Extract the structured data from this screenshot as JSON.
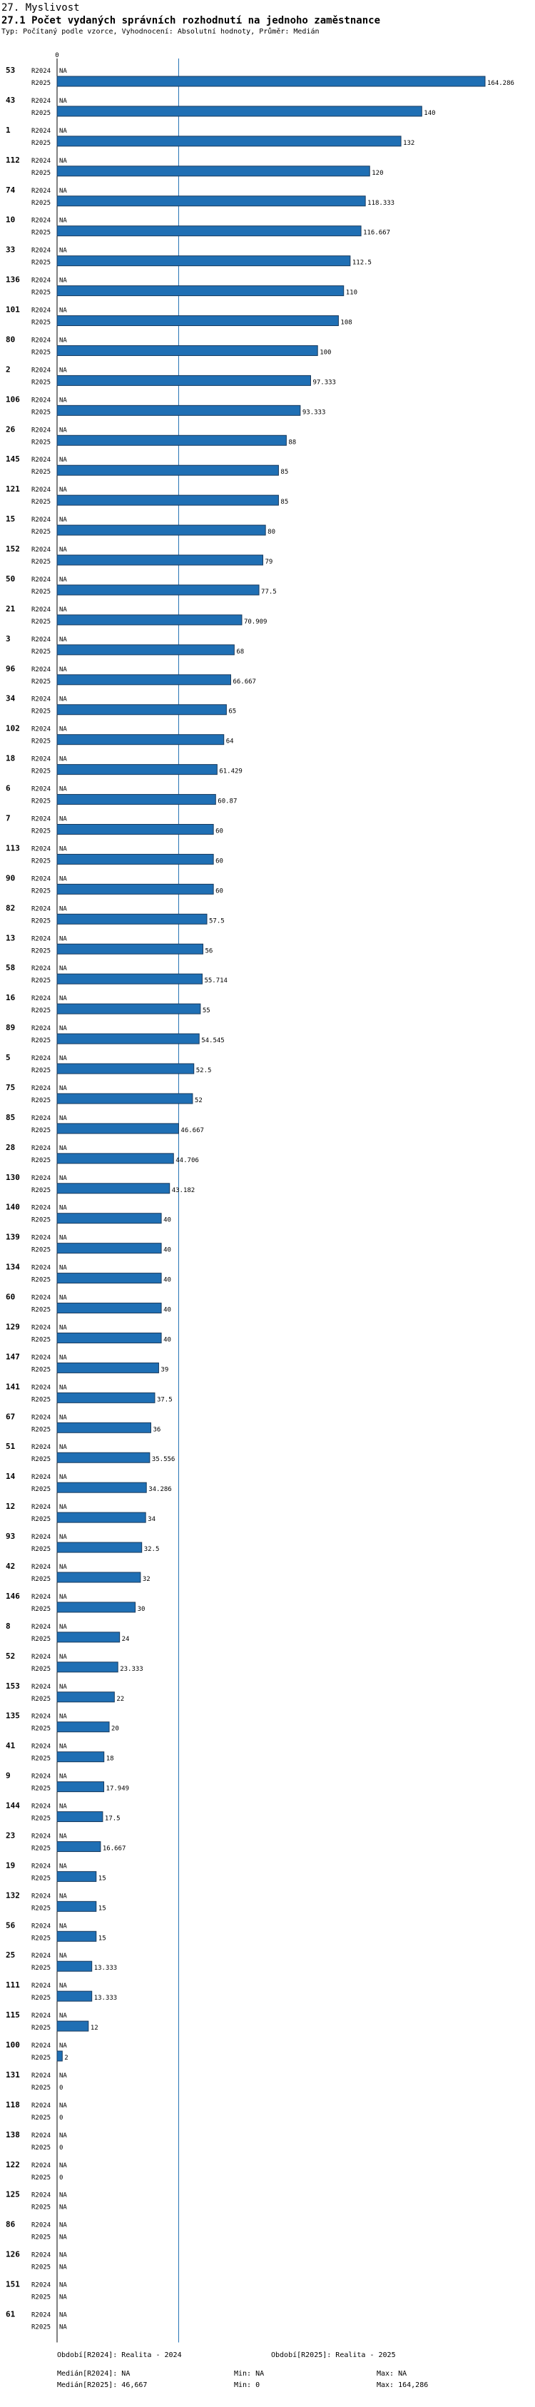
{
  "header": {
    "section_title": "27. Myslivost",
    "chart_title": "27.1 Počet vydaných správních rozhodnutí na jednoho zaměstnance",
    "subtitle": "Typ: Počítaný podle vzorce, Vyhodnocení: Absolutní hodnoty, Průměr: Medián"
  },
  "colors": {
    "bar": "#1f6fb4",
    "bar_stroke": "#1a3a5c",
    "median_line": "#1f6fb4",
    "axis": "#000000"
  },
  "chart_data": {
    "type": "bar",
    "orientation": "horizontal",
    "title": "27.1 Počet vydaných správních rozhodnutí na jednoho zaměstnance",
    "xlim": [
      0,
      164.286
    ],
    "axis_tick_label": "0",
    "series_names": [
      "R2024",
      "R2025"
    ],
    "median_r2025": 46.667,
    "na_label": "NA",
    "categories": [
      "53",
      "43",
      "1",
      "112",
      "74",
      "10",
      "33",
      "136",
      "101",
      "80",
      "2",
      "106",
      "26",
      "145",
      "121",
      "15",
      "152",
      "50",
      "21",
      "3",
      "96",
      "34",
      "102",
      "18",
      "6",
      "7",
      "113",
      "90",
      "82",
      "13",
      "58",
      "16",
      "89",
      "5",
      "75",
      "85",
      "28",
      "130",
      "140",
      "139",
      "134",
      "60",
      "129",
      "147",
      "141",
      "67",
      "51",
      "14",
      "12",
      "93",
      "42",
      "146",
      "8",
      "52",
      "153",
      "135",
      "41",
      "9",
      "144",
      "23",
      "19",
      "132",
      "56",
      "25",
      "111",
      "115",
      "100",
      "131",
      "118",
      "138",
      "122",
      "125",
      "86",
      "126",
      "151",
      "61"
    ],
    "r2024": [
      null,
      null,
      null,
      null,
      null,
      null,
      null,
      null,
      null,
      null,
      null,
      null,
      null,
      null,
      null,
      null,
      null,
      null,
      null,
      null,
      null,
      null,
      null,
      null,
      null,
      null,
      null,
      null,
      null,
      null,
      null,
      null,
      null,
      null,
      null,
      null,
      null,
      null,
      null,
      null,
      null,
      null,
      null,
      null,
      null,
      null,
      null,
      null,
      null,
      null,
      null,
      null,
      null,
      null,
      null,
      null,
      null,
      null,
      null,
      null,
      null,
      null,
      null,
      null,
      null,
      null,
      null,
      null,
      null,
      null,
      null,
      null,
      null,
      null,
      null,
      null
    ],
    "r2025": [
      164.286,
      140,
      132,
      120,
      118.333,
      116.667,
      112.5,
      110,
      108,
      100,
      97.333,
      93.333,
      88,
      85,
      85,
      80,
      79,
      77.5,
      70.909,
      68,
      66.667,
      65,
      64,
      61.429,
      60.87,
      60,
      60,
      60,
      57.5,
      56,
      55.714,
      55,
      54.545,
      52.5,
      52,
      46.667,
      44.706,
      43.182,
      40,
      40,
      40,
      40,
      40,
      39,
      37.5,
      36,
      35.556,
      34.286,
      34,
      32.5,
      32,
      30,
      24,
      23.333,
      22,
      20,
      18,
      17.949,
      17.5,
      16.667,
      15,
      15,
      15,
      13.333,
      13.333,
      12,
      2,
      0,
      0,
      0,
      0,
      null,
      null,
      null,
      null,
      null
    ]
  },
  "footer": {
    "period1": "Období[R2024]: Realita - 2024",
    "period2": "Období[R2025]: Realita - 2025",
    "median1": "Medián[R2024]: NA",
    "min1": "Min: NA",
    "max1": "Max: NA",
    "median2": "Medián[R2025]: 46,667",
    "min2": "Min: 0",
    "max2": "Max: 164,286"
  }
}
